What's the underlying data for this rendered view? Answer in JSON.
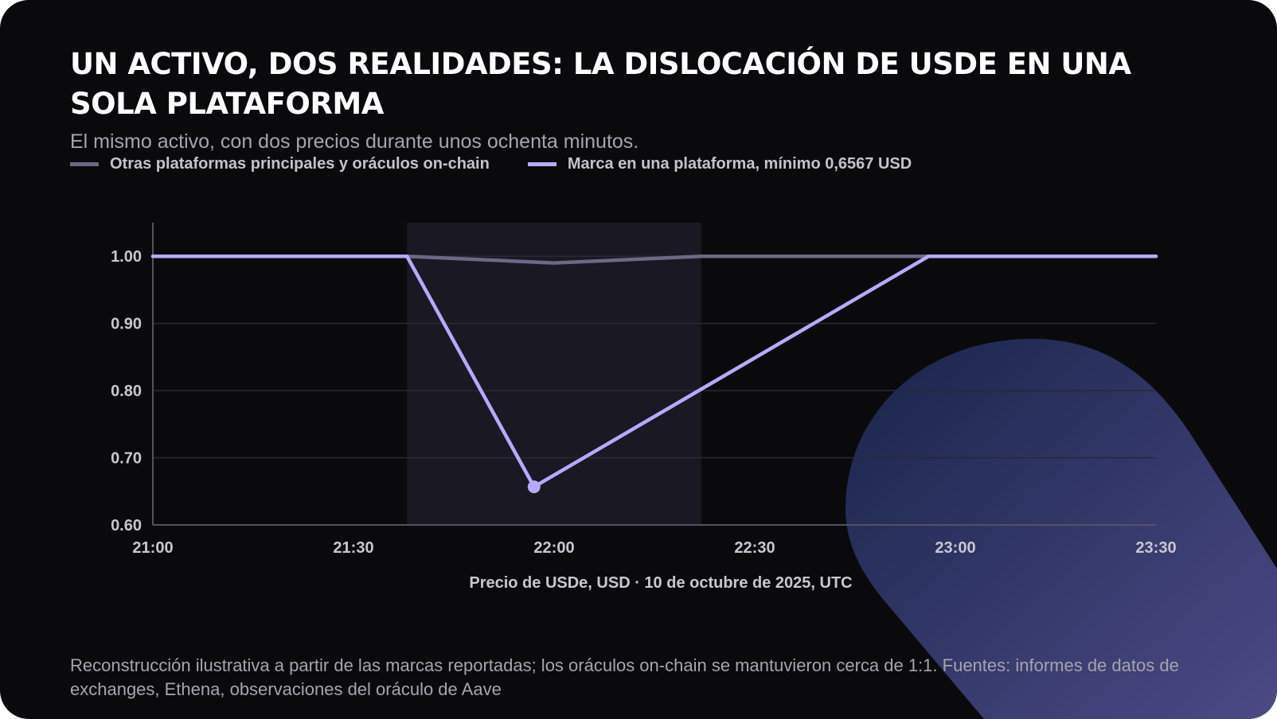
{
  "header": {
    "title": "UN ACTIVO, DOS REALIDADES: LA DISLOCACIÓN DE USDE EN UNA SOLA PLATAFORMA",
    "subtitle": "El mismo activo, con dos precios durante unos ochenta minutos."
  },
  "footer": {
    "note": "Reconstrucción ilustrativa a partir de las marcas reportadas; los oráculos on-chain se mantuvieron cerca de 1:1. Fuentes: informes de datos de exchanges, Ethena, observaciones del oráculo de Aave"
  },
  "colors": {
    "background": "#0a0a0c",
    "series_reference": "#6e6884",
    "series_platform": "#b7a9ff",
    "highlight_band": "#1a1823",
    "grid": "#2a2832",
    "axis": "#55525f",
    "tick_label": "#c9c6d0"
  },
  "chart_data": {
    "type": "line",
    "title": "UN ACTIVO, DOS REALIDADES: LA DISLOCACIÓN DE USDE EN UNA SOLA PLATAFORMA",
    "subtitle": "El mismo activo, con dos precios durante unos ochenta minutos.",
    "xlabel": "Precio de USDe, USD · 10 de octubre de 2025, UTC",
    "ylabel": "",
    "x_tick_labels": [
      "21:00",
      "21:30",
      "22:00",
      "22:30",
      "23:00",
      "23:30"
    ],
    "y_tick_labels": [
      "1.00",
      "0.90",
      "0.80",
      "0.70",
      "0.60"
    ],
    "y_ticks": [
      1.0,
      0.9,
      0.8,
      0.7,
      0.6
    ],
    "xlim": [
      "21:00",
      "23:30"
    ],
    "ylim": [
      0.6,
      1.05
    ],
    "grid": true,
    "legend_position": "top-left",
    "highlight_band": {
      "from": "21:38",
      "to": "22:22"
    },
    "series": [
      {
        "name": "Otras plataformas principales y oráculos on-chain",
        "points": [
          {
            "x": "21:00",
            "y": 1.0
          },
          {
            "x": "21:38",
            "y": 1.0
          },
          {
            "x": "22:00",
            "y": 0.99
          },
          {
            "x": "22:22",
            "y": 1.0
          },
          {
            "x": "23:30",
            "y": 1.0
          }
        ]
      },
      {
        "name": "Marca en una plataforma, mínimo 0,6567 USD",
        "points": [
          {
            "x": "21:00",
            "y": 1.0
          },
          {
            "x": "21:38",
            "y": 1.0
          },
          {
            "x": "21:57",
            "y": 0.6567
          },
          {
            "x": "22:56",
            "y": 1.0
          },
          {
            "x": "23:30",
            "y": 1.0
          }
        ],
        "marked_point": {
          "x": "21:57",
          "y": 0.6567
        }
      }
    ]
  }
}
